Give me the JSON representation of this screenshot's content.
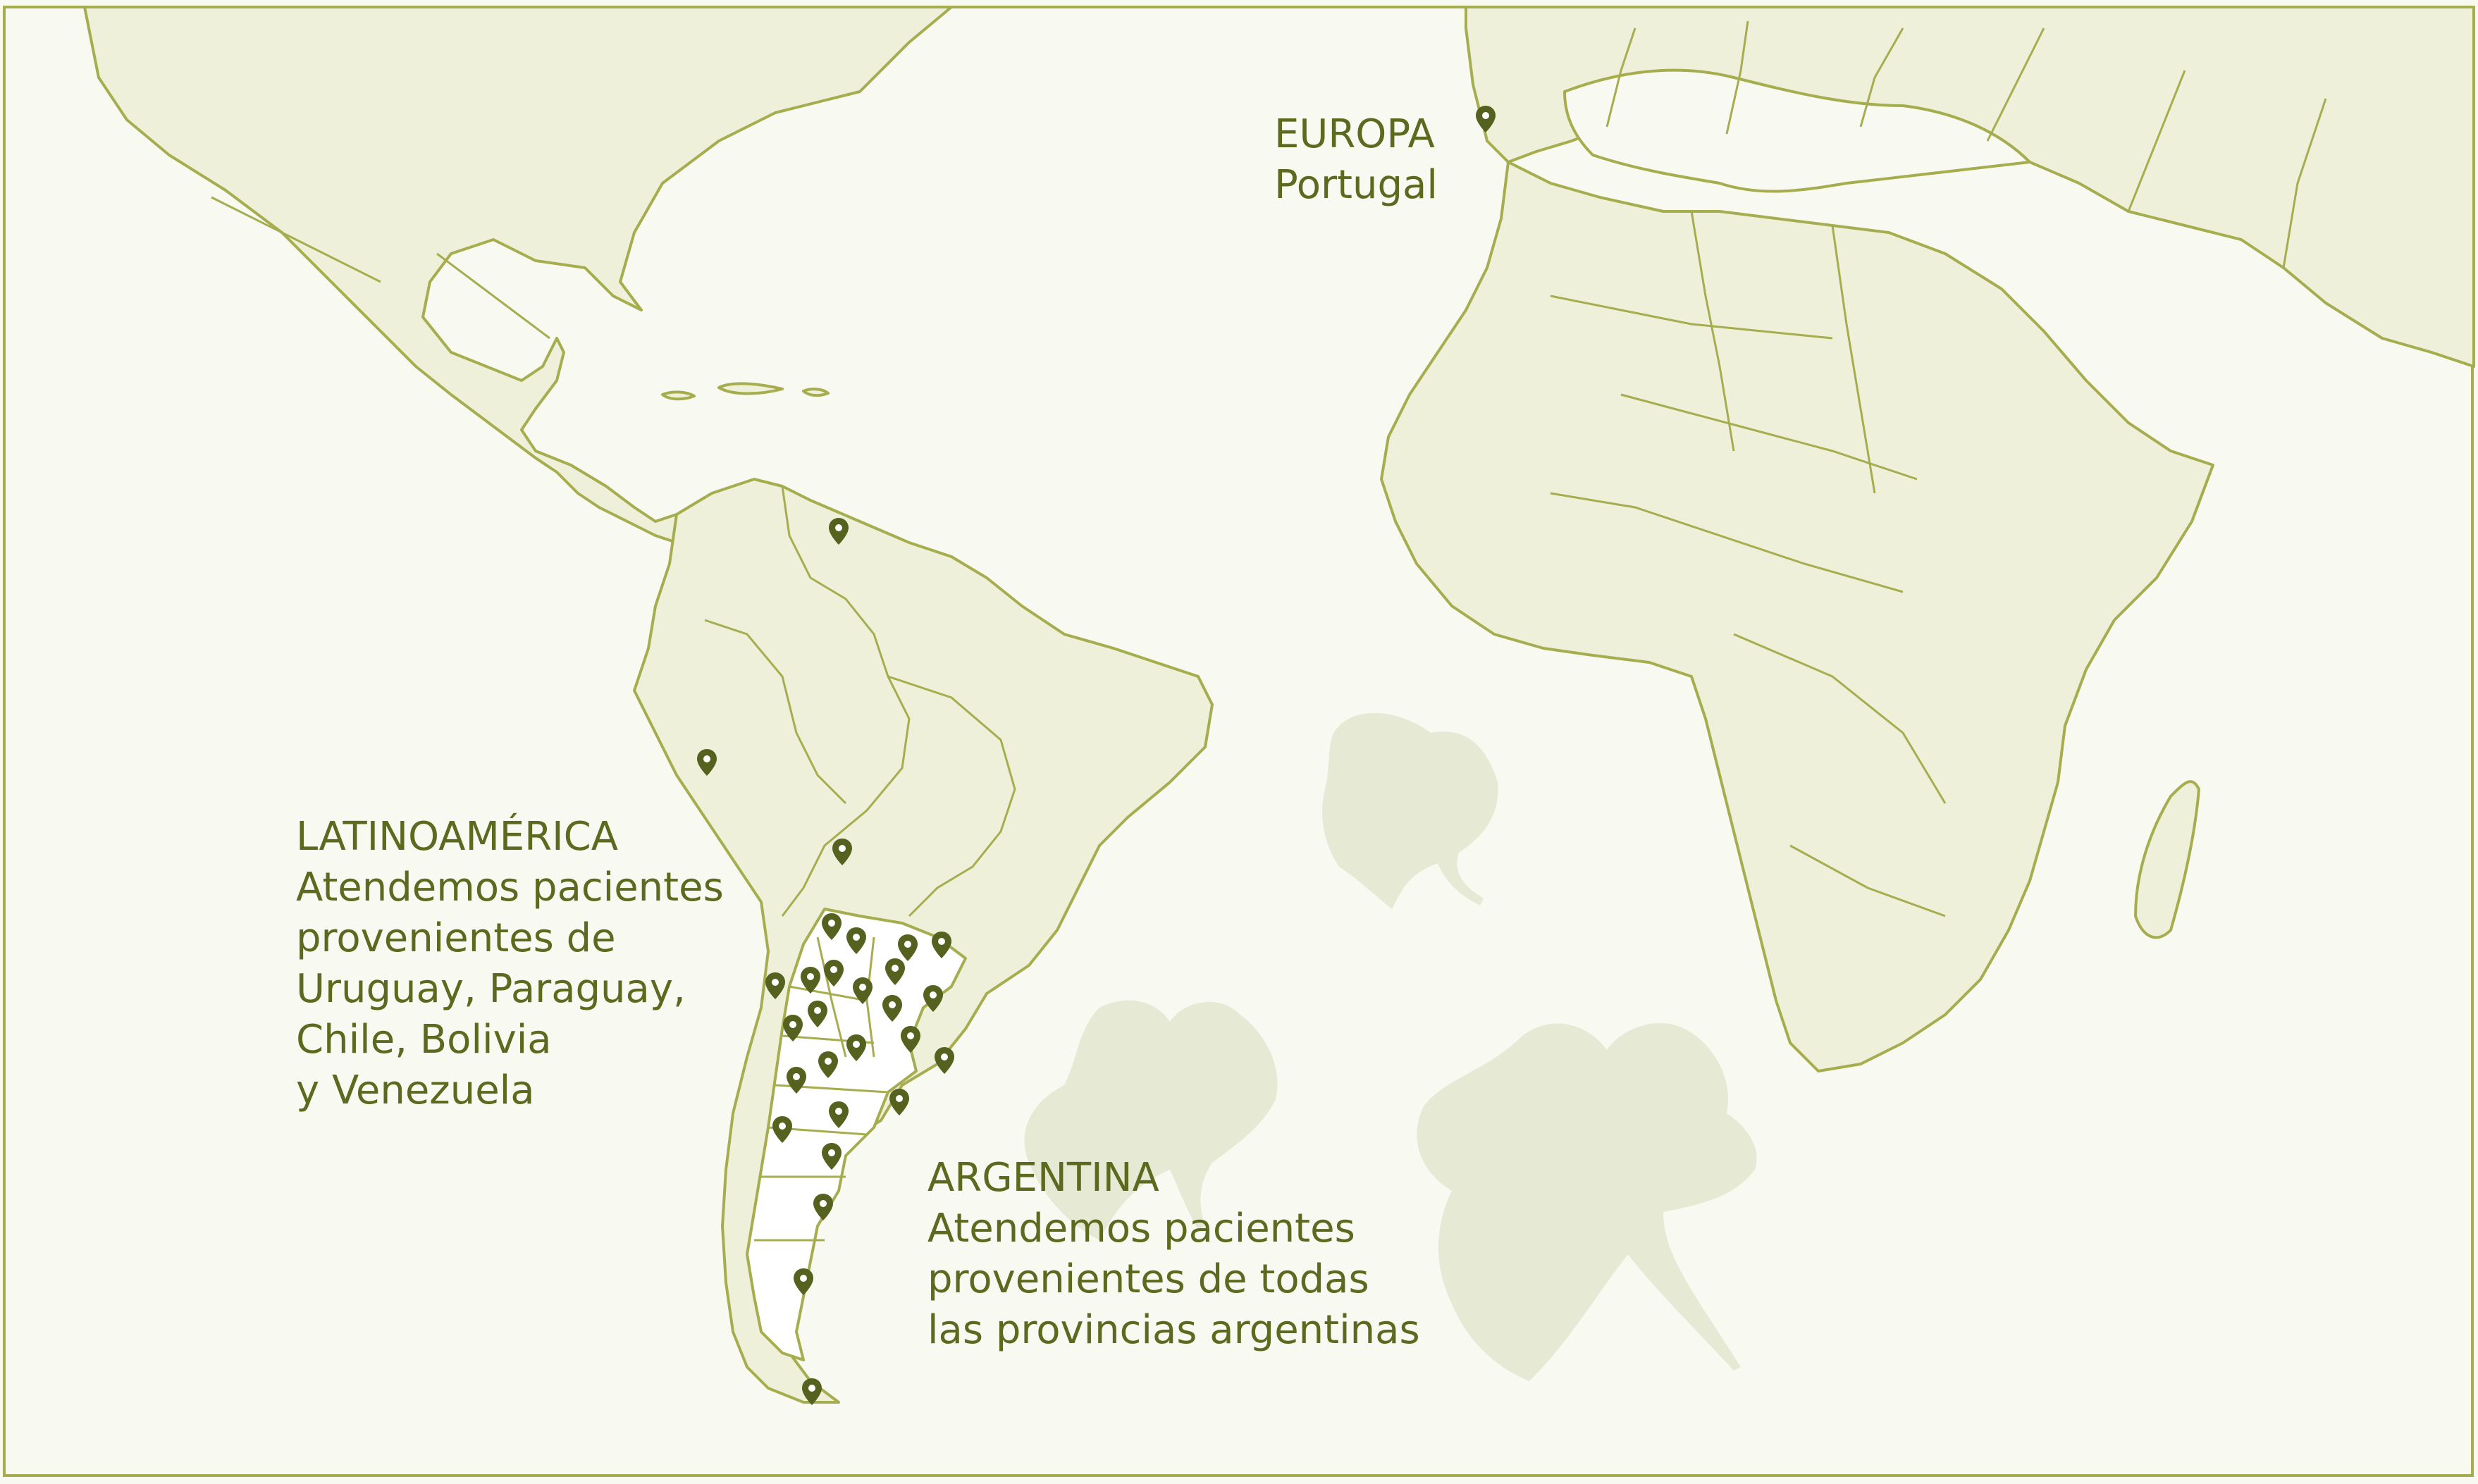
{
  "colors": {
    "background": "#f8f9f1",
    "land": "#eef0da",
    "border": "#a6ad4e",
    "argentina": "#ffffff",
    "leaf": "#e6e9d4",
    "pin": "#55611f",
    "text": "#5c6a1f"
  },
  "icons": {
    "pin": "map-pin-icon",
    "leaf": "ginkgo-leaf-icon"
  },
  "regions": {
    "europe": {
      "title": "EUROPA",
      "lines": [
        "Portugal"
      ]
    },
    "latam": {
      "title": "LATINOAMÉRICA",
      "lines": [
        "Atendemos pacientes",
        "provenientes de",
        "Uruguay, Paraguay,",
        "Chile, Bolivia",
        "y Venezuela"
      ]
    },
    "argentina": {
      "title": "ARGENTINA",
      "lines": [
        "Atendemos pacientes",
        "provenientes de todas",
        "las provincias argentinas"
      ]
    }
  }
}
